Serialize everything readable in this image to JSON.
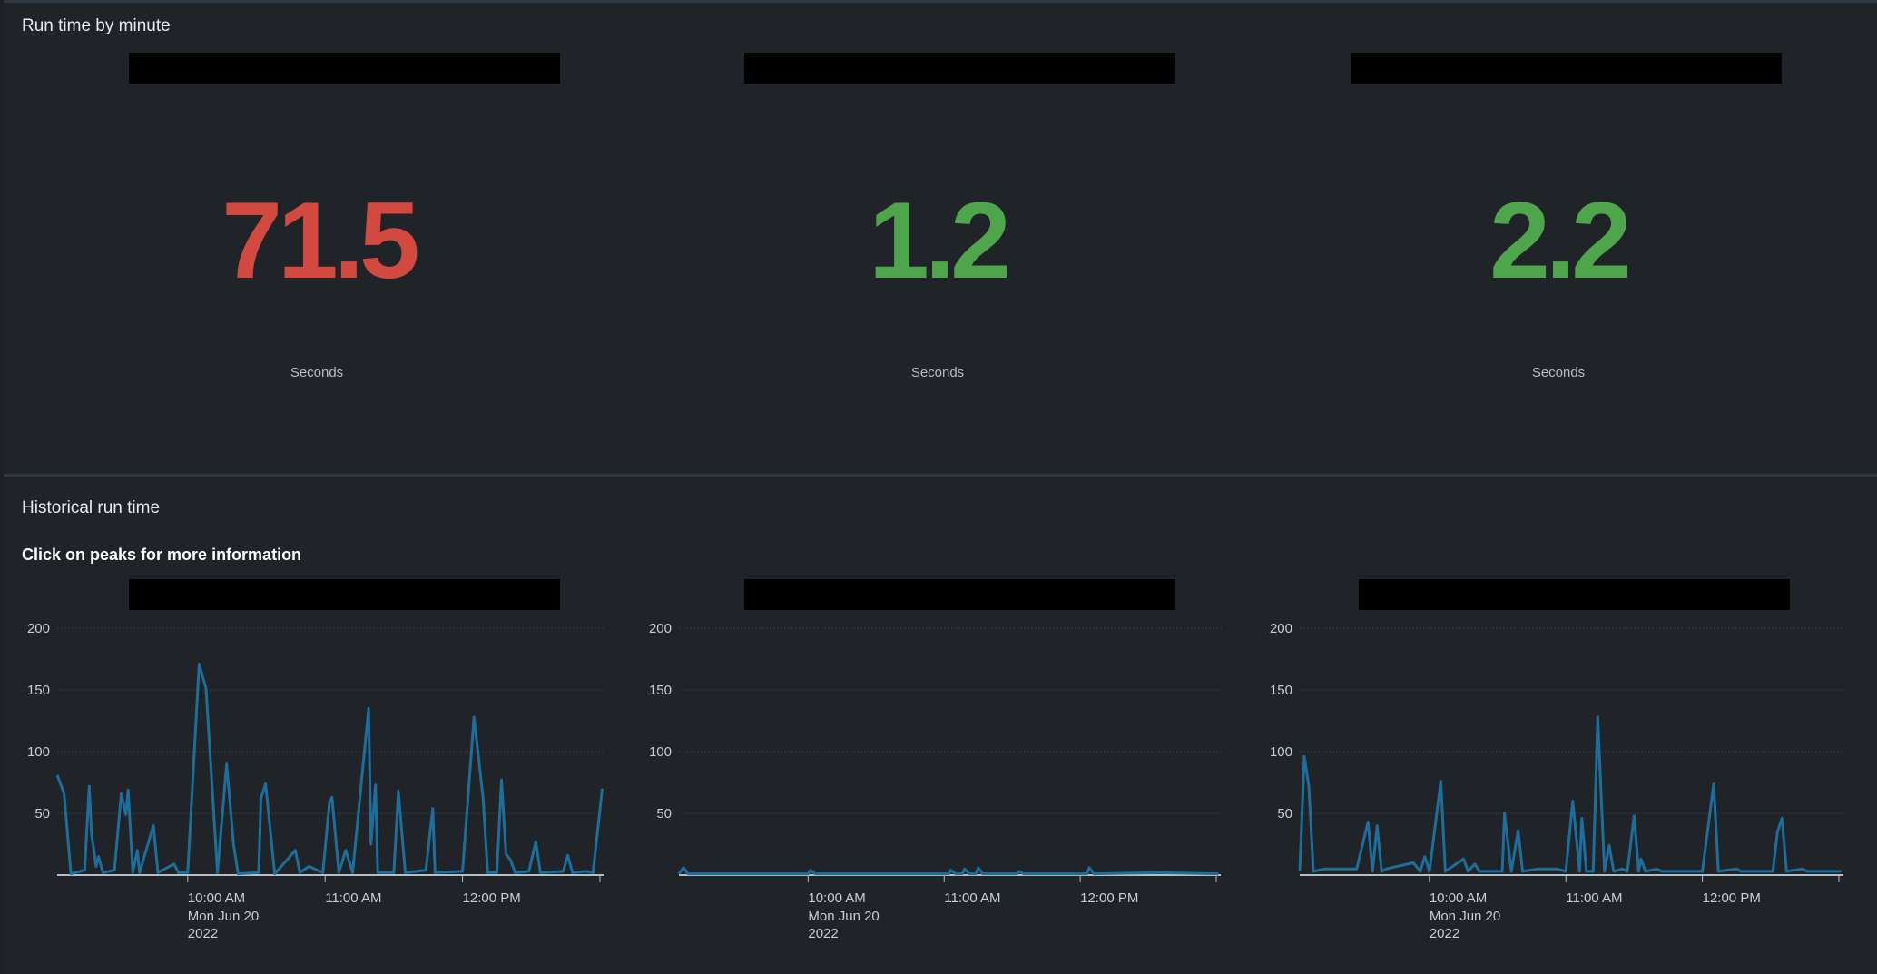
{
  "top_panel": {
    "title": "Run time by minute",
    "singles": [
      {
        "value": "71.5",
        "unit": "Seconds",
        "color": "#d24a3f"
      },
      {
        "value": "1.2",
        "unit": "Seconds",
        "color": "#4fa54b"
      },
      {
        "value": "2.2",
        "unit": "Seconds",
        "color": "#4fa54b"
      }
    ]
  },
  "bottom_panel": {
    "title": "Historical run time",
    "subtitle": "Click on peaks for more information"
  },
  "colors": {
    "line": "#1c6f9c",
    "grid": "#3a3f46",
    "axis": "#b9bec4"
  },
  "chart_data": [
    {
      "type": "line",
      "xlim": [
        "09:03",
        "13:02"
      ],
      "ylim": [
        0,
        200
      ],
      "y_ticks": [
        "50",
        "100",
        "150",
        "200"
      ],
      "x_ticks": [
        {
          "time": "10:00",
          "label": "10:00 AM",
          "sublabels": [
            "Mon Jun 20",
            "2022"
          ]
        },
        {
          "time": "11:00",
          "label": "11:00 AM",
          "sublabels": []
        },
        {
          "time": "12:00",
          "label": "12:00 PM",
          "sublabels": []
        },
        {
          "time": "13:00",
          "label": "",
          "sublabels": []
        }
      ],
      "grid": true,
      "points": [
        [
          "09:03",
          81
        ],
        [
          "09:06",
          66
        ],
        [
          "09:09",
          1
        ],
        [
          "09:15",
          4
        ],
        [
          "09:17",
          72
        ],
        [
          "09:18",
          34
        ],
        [
          "09:20",
          7
        ],
        [
          "09:21",
          15
        ],
        [
          "09:23",
          2
        ],
        [
          "09:28",
          4
        ],
        [
          "09:31",
          66
        ],
        [
          "09:33",
          49
        ],
        [
          "09:34",
          69
        ],
        [
          "09:36",
          2
        ],
        [
          "09:38",
          20
        ],
        [
          "09:39",
          2
        ],
        [
          "09:45",
          40
        ],
        [
          "09:47",
          2
        ],
        [
          "09:54",
          9
        ],
        [
          "09:56",
          2
        ],
        [
          "10:00",
          2
        ],
        [
          "10:05",
          171
        ],
        [
          "10:08",
          151
        ],
        [
          "10:13",
          2
        ],
        [
          "10:17",
          90
        ],
        [
          "10:20",
          25
        ],
        [
          "10:22",
          1
        ],
        [
          "10:31",
          2
        ],
        [
          "10:32",
          62
        ],
        [
          "10:34",
          74
        ],
        [
          "10:38",
          1
        ],
        [
          "10:47",
          20
        ],
        [
          "10:49",
          2
        ],
        [
          "10:53",
          7
        ],
        [
          "10:59",
          2
        ],
        [
          "11:02",
          60
        ],
        [
          "11:03",
          63
        ],
        [
          "11:06",
          2
        ],
        [
          "11:09",
          20
        ],
        [
          "11:12",
          2
        ],
        [
          "11:19",
          135
        ],
        [
          "11:20",
          25
        ],
        [
          "11:22",
          73
        ],
        [
          "11:23",
          2
        ],
        [
          "11:30",
          2
        ],
        [
          "11:32",
          68
        ],
        [
          "11:35",
          2
        ],
        [
          "11:44",
          4
        ],
        [
          "11:47",
          54
        ],
        [
          "11:48",
          2
        ],
        [
          "12:00",
          3
        ],
        [
          "12:05",
          128
        ],
        [
          "12:09",
          62
        ],
        [
          "12:11",
          2
        ],
        [
          "12:15",
          2
        ],
        [
          "12:17",
          77
        ],
        [
          "12:19",
          17
        ],
        [
          "12:21",
          12
        ],
        [
          "12:23",
          2
        ],
        [
          "12:29",
          3
        ],
        [
          "12:32",
          27
        ],
        [
          "12:34",
          2
        ],
        [
          "12:44",
          3
        ],
        [
          "12:46",
          16
        ],
        [
          "12:48",
          2
        ],
        [
          "12:54",
          3
        ],
        [
          "12:57",
          2
        ],
        [
          "13:01",
          70
        ]
      ]
    },
    {
      "type": "line",
      "xlim": [
        "09:03",
        "13:02"
      ],
      "ylim": [
        0,
        200
      ],
      "y_ticks": [
        "50",
        "100",
        "150",
        "200"
      ],
      "x_ticks": [
        {
          "time": "10:00",
          "label": "10:00 AM",
          "sublabels": [
            "Mon Jun 20",
            "2022"
          ]
        },
        {
          "time": "11:00",
          "label": "11:00 AM",
          "sublabels": []
        },
        {
          "time": "12:00",
          "label": "12:00 PM",
          "sublabels": []
        },
        {
          "time": "13:00",
          "label": "",
          "sublabels": []
        }
      ],
      "grid": true,
      "points": [
        [
          "09:03",
          1
        ],
        [
          "09:05",
          6
        ],
        [
          "09:07",
          1
        ],
        [
          "10:00",
          1
        ],
        [
          "10:01",
          4
        ],
        [
          "10:03",
          1
        ],
        [
          "11:02",
          1
        ],
        [
          "11:03",
          4
        ],
        [
          "11:05",
          1
        ],
        [
          "11:08",
          1
        ],
        [
          "11:09",
          5
        ],
        [
          "11:11",
          1
        ],
        [
          "11:14",
          1
        ],
        [
          "11:15",
          6
        ],
        [
          "11:17",
          1
        ],
        [
          "11:32",
          1
        ],
        [
          "11:33",
          3
        ],
        [
          "11:35",
          1
        ],
        [
          "12:03",
          1
        ],
        [
          "12:04",
          6
        ],
        [
          "12:06",
          1
        ],
        [
          "12:33",
          2
        ],
        [
          "13:01",
          1
        ]
      ]
    },
    {
      "type": "line",
      "xlim": [
        "09:03",
        "13:02"
      ],
      "ylim": [
        0,
        200
      ],
      "y_ticks": [
        "50",
        "100",
        "150",
        "200"
      ],
      "x_ticks": [
        {
          "time": "10:00",
          "label": "10:00 AM",
          "sublabels": [
            "Mon Jun 20",
            "2022"
          ]
        },
        {
          "time": "11:00",
          "label": "11:00 AM",
          "sublabels": []
        },
        {
          "time": "12:00",
          "label": "12:00 PM",
          "sublabels": []
        },
        {
          "time": "13:00",
          "label": "",
          "sublabels": []
        }
      ],
      "grid": true,
      "points": [
        [
          "09:03",
          3
        ],
        [
          "09:05",
          96
        ],
        [
          "09:07",
          72
        ],
        [
          "09:09",
          3
        ],
        [
          "09:14",
          5
        ],
        [
          "09:28",
          5
        ],
        [
          "09:33",
          43
        ],
        [
          "09:35",
          3
        ],
        [
          "09:37",
          40
        ],
        [
          "09:39",
          3
        ],
        [
          "09:41",
          5
        ],
        [
          "09:53",
          10
        ],
        [
          "09:56",
          3
        ],
        [
          "09:58",
          15
        ],
        [
          "10:00",
          3
        ],
        [
          "10:05",
          76
        ],
        [
          "10:07",
          3
        ],
        [
          "10:15",
          13
        ],
        [
          "10:17",
          3
        ],
        [
          "10:20",
          9
        ],
        [
          "10:22",
          3
        ],
        [
          "10:32",
          3
        ],
        [
          "10:33",
          50
        ],
        [
          "10:36",
          3
        ],
        [
          "10:39",
          36
        ],
        [
          "10:41",
          3
        ],
        [
          "10:48",
          5
        ],
        [
          "10:56",
          5
        ],
        [
          "11:00",
          3
        ],
        [
          "11:03",
          60
        ],
        [
          "11:06",
          3
        ],
        [
          "11:07",
          46
        ],
        [
          "11:09",
          3
        ],
        [
          "11:12",
          3
        ],
        [
          "11:14",
          128
        ],
        [
          "11:17",
          3
        ],
        [
          "11:19",
          24
        ],
        [
          "11:21",
          3
        ],
        [
          "11:25",
          5
        ],
        [
          "11:27",
          3
        ],
        [
          "11:30",
          48
        ],
        [
          "11:32",
          3
        ],
        [
          "11:33",
          13
        ],
        [
          "11:35",
          3
        ],
        [
          "11:40",
          5
        ],
        [
          "11:42",
          3
        ],
        [
          "12:00",
          3
        ],
        [
          "12:05",
          74
        ],
        [
          "12:07",
          3
        ],
        [
          "12:15",
          5
        ],
        [
          "12:17",
          3
        ],
        [
          "12:31",
          3
        ],
        [
          "12:33",
          35
        ],
        [
          "12:35",
          46
        ],
        [
          "12:37",
          3
        ],
        [
          "12:44",
          5
        ],
        [
          "12:46",
          3
        ],
        [
          "13:01",
          3
        ]
      ]
    }
  ]
}
